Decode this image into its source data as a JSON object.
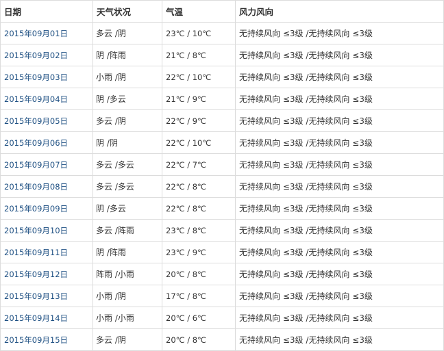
{
  "headers": [
    "日期",
    "天气状况",
    "气温",
    "风力风向"
  ],
  "rows": [
    {
      "date": "2015年09月01日",
      "weather": "多云 /阴",
      "temp": "23℃ / 10℃",
      "wind": "无持续风向 ≤3级 /无持续风向 ≤3级"
    },
    {
      "date": "2015年09月02日",
      "weather": "阴 /阵雨",
      "temp": "21℃ / 8℃",
      "wind": "无持续风向 ≤3级 /无持续风向 ≤3级"
    },
    {
      "date": "2015年09月03日",
      "weather": "小雨 /阴",
      "temp": "22℃ / 10℃",
      "wind": "无持续风向 ≤3级 /无持续风向 ≤3级"
    },
    {
      "date": "2015年09月04日",
      "weather": "阴 /多云",
      "temp": "21℃ / 9℃",
      "wind": "无持续风向 ≤3级 /无持续风向 ≤3级"
    },
    {
      "date": "2015年09月05日",
      "weather": "多云 /阴",
      "temp": "22℃ / 9℃",
      "wind": "无持续风向 ≤3级 /无持续风向 ≤3级"
    },
    {
      "date": "2015年09月06日",
      "weather": "阴 /阴",
      "temp": "22℃ / 10℃",
      "wind": "无持续风向 ≤3级 /无持续风向 ≤3级"
    },
    {
      "date": "2015年09月07日",
      "weather": "多云 /多云",
      "temp": "22℃ / 7℃",
      "wind": "无持续风向 ≤3级 /无持续风向 ≤3级"
    },
    {
      "date": "2015年09月08日",
      "weather": "多云 /多云",
      "temp": "22℃ / 8℃",
      "wind": "无持续风向 ≤3级 /无持续风向 ≤3级"
    },
    {
      "date": "2015年09月09日",
      "weather": "阴 /多云",
      "temp": "22℃ / 8℃",
      "wind": "无持续风向 ≤3级 /无持续风向 ≤3级"
    },
    {
      "date": "2015年09月10日",
      "weather": "多云 /阵雨",
      "temp": "23℃ / 8℃",
      "wind": "无持续风向 ≤3级 /无持续风向 ≤3级"
    },
    {
      "date": "2015年09月11日",
      "weather": "阴 /阵雨",
      "temp": "23℃ / 9℃",
      "wind": "无持续风向 ≤3级 /无持续风向 ≤3级"
    },
    {
      "date": "2015年09月12日",
      "weather": "阵雨 /小雨",
      "temp": "20℃ / 8℃",
      "wind": "无持续风向 ≤3级 /无持续风向 ≤3级"
    },
    {
      "date": "2015年09月13日",
      "weather": "小雨 /阴",
      "temp": "17℃ / 8℃",
      "wind": "无持续风向 ≤3级 /无持续风向 ≤3级"
    },
    {
      "date": "2015年09月14日",
      "weather": "小雨 /小雨",
      "temp": "20℃ / 6℃",
      "wind": "无持续风向 ≤3级 /无持续风向 ≤3级"
    },
    {
      "date": "2015年09月15日",
      "weather": "多云 /阴",
      "temp": "20℃ / 8℃",
      "wind": "无持续风向 ≤3级 /无持续风向 ≤3级"
    }
  ]
}
